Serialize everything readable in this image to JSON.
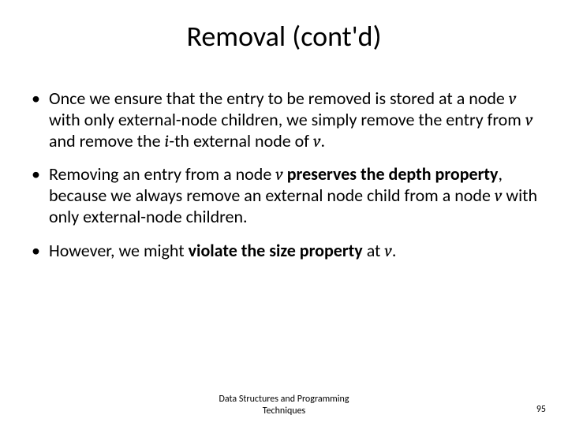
{
  "slide": {
    "title": "Removal (cont'd)",
    "title_fontsize": 36,
    "body_fontsize": 22,
    "text_color": "#000000",
    "background_color": "#ffffff",
    "bullets": [
      {
        "pre1": "Once we ensure that the entry to be removed is stored at a node ",
        "var1": "v",
        "mid1": " with only external-node children, we simply remove the entry from ",
        "var2": "v",
        "mid2": " and remove the ",
        "var3": "i",
        "mid3": "-th external node of ",
        "var4": "v",
        "post": "."
      },
      {
        "pre1": "Removing an entry from a node ",
        "var1": "v",
        "bold1": " preserves the depth property",
        "mid1": ", because we always remove an external node child from a node ",
        "var2": "v",
        "post": " with only external-node children."
      },
      {
        "pre1": "However, we might ",
        "bold1": "violate the size property",
        "mid1": " at ",
        "var1": "v",
        "post": "."
      }
    ],
    "footer_line1": "Data Structures and Programming",
    "footer_line2": "Techniques",
    "footer_fontsize": 12,
    "page_number": "95"
  }
}
